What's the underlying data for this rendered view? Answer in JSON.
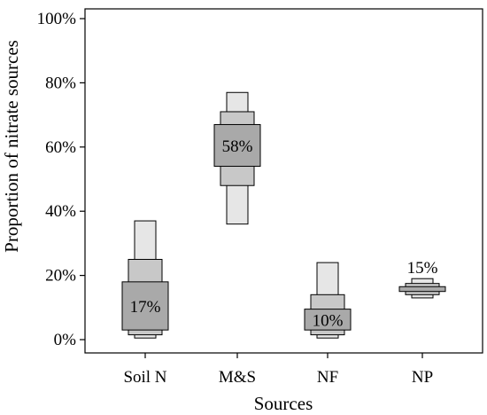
{
  "chart_data": {
    "type": "box",
    "xlabel": "Sources",
    "ylabel": "Proportion of nitrate sources",
    "ylim": [
      0,
      100
    ],
    "yticks": [
      0,
      20,
      40,
      60,
      80,
      100
    ],
    "ytick_labels": [
      "0%",
      "20%",
      "40%",
      "60%",
      "80%",
      "100%"
    ],
    "categories": [
      "Soil N",
      "M&S",
      "NF",
      "NP"
    ],
    "bands": [
      "95%",
      "75%",
      "50%"
    ],
    "band_colors": [
      "#e6e6e6",
      "#c8c8c8",
      "#a9a9a9"
    ],
    "sources": [
      {
        "name": "Soil N",
        "median_label": "17%",
        "ranges": [
          [
            0.5,
            37
          ],
          [
            1.5,
            25
          ],
          [
            3,
            18
          ]
        ]
      },
      {
        "name": "M&S",
        "median_label": "58%",
        "ranges": [
          [
            36,
            77
          ],
          [
            48,
            71
          ],
          [
            54,
            67
          ]
        ]
      },
      {
        "name": "NF",
        "median_label": "10%",
        "ranges": [
          [
            0.5,
            24
          ],
          [
            1.5,
            14
          ],
          [
            3,
            9.5
          ]
        ]
      },
      {
        "name": "NP",
        "median_label": "15%",
        "ranges": [
          [
            13,
            19
          ],
          [
            14,
            17.5
          ],
          [
            15,
            16.5
          ]
        ]
      }
    ]
  }
}
